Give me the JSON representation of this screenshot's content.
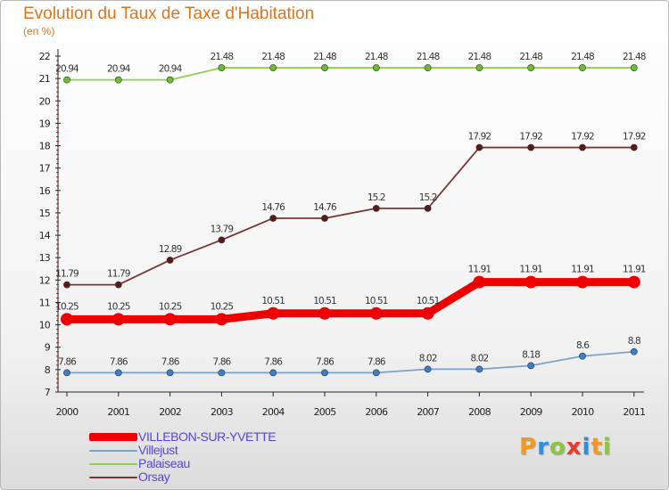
{
  "title": "Evolution du Taux de Taxe d'Habitation",
  "subtitle": "(en %)",
  "logo": {
    "text": "Proxiti",
    "letters": [
      {
        "ch": "P",
        "color": "#f29a1f"
      },
      {
        "ch": "r",
        "color": "#2f8fd8"
      },
      {
        "ch": "o",
        "color": "#8cc63f"
      },
      {
        "ch": "x",
        "color": "#e63a2e"
      },
      {
        "ch": "i",
        "color": "#2f8fd8"
      },
      {
        "ch": "t",
        "color": "#f29a1f"
      },
      {
        "ch": "i",
        "color": "#8cc63f"
      }
    ]
  },
  "chart_data": {
    "type": "line",
    "x": [
      "2000",
      "2001",
      "2002",
      "2003",
      "2004",
      "2005",
      "2006",
      "2007",
      "2008",
      "2009",
      "2010",
      "2011"
    ],
    "ylim": [
      7,
      22
    ],
    "yticks": [
      "7",
      "8",
      "9",
      "10",
      "11",
      "12",
      "13",
      "14",
      "15",
      "16",
      "17",
      "18",
      "19",
      "20",
      "21",
      "22"
    ],
    "grid": false,
    "legend": "bottom-left",
    "series": [
      {
        "name": "Palaiseau",
        "color": "#8fd24a",
        "marker": "#6bbd2e",
        "bold": false,
        "values": [
          20.94,
          20.94,
          20.94,
          21.48,
          21.48,
          21.48,
          21.48,
          21.48,
          21.48,
          21.48,
          21.48,
          21.48
        ],
        "labels": [
          "20.94",
          "20.94",
          "20.94",
          "21.48",
          "21.48",
          "21.48",
          "21.48",
          "21.48",
          "21.48",
          "21.48",
          "21.48",
          "21.48"
        ]
      },
      {
        "name": "Orsay",
        "color": "#7a3535",
        "marker": "#5a1a1a",
        "bold": false,
        "values": [
          11.79,
          11.79,
          12.89,
          13.79,
          14.76,
          14.76,
          15.2,
          15.2,
          17.92,
          17.92,
          17.92,
          17.92
        ],
        "labels": [
          "11.79",
          "11.79",
          "12.89",
          "13.79",
          "14.76",
          "14.76",
          "15.2",
          "15.2",
          "17.92",
          "17.92",
          "17.92",
          "17.92"
        ]
      },
      {
        "name": "VILLEBON-SUR-YVETTE",
        "color": "#ee0000",
        "marker": "#ee0000",
        "bold": true,
        "values": [
          10.25,
          10.25,
          10.25,
          10.25,
          10.51,
          10.51,
          10.51,
          10.51,
          11.91,
          11.91,
          11.91,
          11.91
        ],
        "labels": [
          "10.25",
          "10.25",
          "10.25",
          "10.25",
          "10.51",
          "10.51",
          "10.51",
          "10.51",
          "11.91",
          "11.91",
          "11.91",
          "11.91"
        ]
      },
      {
        "name": "Villejust",
        "color": "#7aa3cc",
        "marker": "#3a80c8",
        "bold": false,
        "values": [
          7.86,
          7.86,
          7.86,
          7.86,
          7.86,
          7.86,
          7.86,
          8.02,
          8.02,
          8.18,
          8.6,
          8.8
        ],
        "labels": [
          "7.86",
          "7.86",
          "7.86",
          "7.86",
          "7.86",
          "7.86",
          "7.86",
          "8.02",
          "8.02",
          "8.18",
          "8.6",
          "8.8"
        ]
      }
    ],
    "legend_order": [
      "VILLEBON-SUR-YVETTE",
      "Villejust",
      "Palaiseau",
      "Orsay"
    ]
  }
}
